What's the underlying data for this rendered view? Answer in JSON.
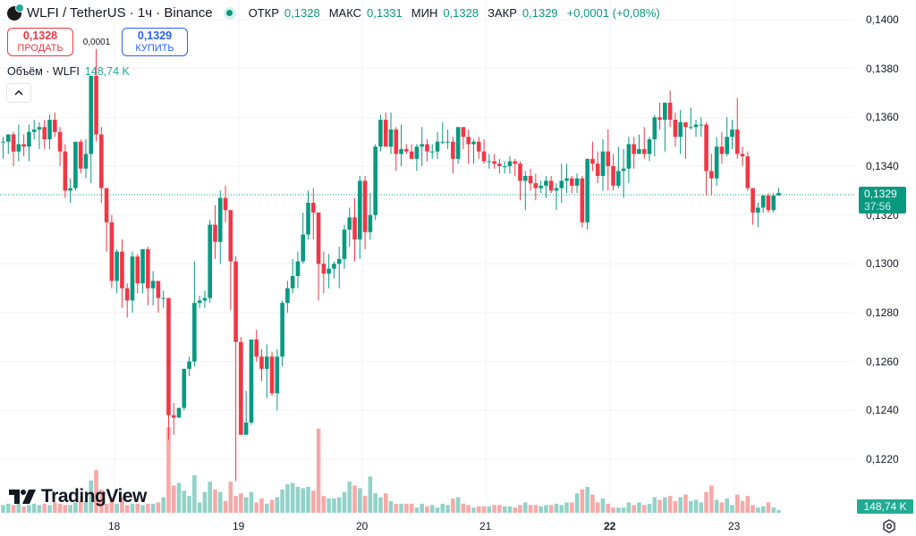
{
  "header": {
    "symbol": "WLFI / TetherUS · 1ч · Binance",
    "ohlc": [
      {
        "label": "ОТКР",
        "value": "0,1328"
      },
      {
        "label": "МАКС",
        "value": "0,1331"
      },
      {
        "label": "МИН",
        "value": "0,1328"
      },
      {
        "label": "ЗАКР",
        "value": "0,1329"
      }
    ],
    "change": "+0,0001 (+0,08%)"
  },
  "trade": {
    "sell_price": "0,1328",
    "sell_label": "ПРОДАТЬ",
    "spread": "0,0001",
    "buy_price": "0,1329",
    "buy_label": "КУПИТЬ"
  },
  "volume_legend": {
    "label": "Объём · WLFI",
    "value": "148,74 K"
  },
  "price_axis": {
    "ticks": [
      "0,1400",
      "0,1380",
      "0,1360",
      "0,1340",
      "0,1320",
      "0,1300",
      "0,1280",
      "0,1260",
      "0,1240",
      "0,1220"
    ],
    "current_price": "0,1329",
    "countdown": "37:56",
    "volume_tag": "148,74 K"
  },
  "time_axis": {
    "ticks": [
      "18",
      "19",
      "20",
      "21",
      "22",
      "23"
    ],
    "bold_tick": "22"
  },
  "branding": "TradingView",
  "colors": {
    "up": "#089981",
    "down": "#f23645",
    "vol_up": "#92d2c8",
    "vol_down": "#f7a9a7",
    "grid": "#f0f3fa"
  },
  "chart_data": {
    "type": "candlestick",
    "title": "WLFI / TetherUS · 1ч · Binance",
    "xlabel": "",
    "ylabel": "",
    "ylim": [
      0.1207,
      0.1405
    ],
    "x_ticks": [
      "18",
      "19",
      "20",
      "21",
      "22",
      "23"
    ],
    "y_ticks": [
      0.14,
      0.138,
      0.136,
      0.134,
      0.132,
      0.13,
      0.128,
      0.126,
      0.124,
      0.122
    ],
    "last": {
      "open": 0.1328,
      "high": 0.1331,
      "low": 0.1328,
      "close": 0.1329,
      "volume": "148,74 K"
    },
    "candles": [
      [
        0.135,
        0.1352,
        0.1343,
        0.135,
        6
      ],
      [
        0.135,
        0.1353,
        0.1345,
        0.1353,
        7
      ],
      [
        0.1353,
        0.1354,
        0.134,
        0.1346,
        6
      ],
      [
        0.1346,
        0.1357,
        0.1342,
        0.1349,
        7
      ],
      [
        0.1349,
        0.1353,
        0.1344,
        0.1348,
        5
      ],
      [
        0.1348,
        0.1357,
        0.1342,
        0.1354,
        6
      ],
      [
        0.1354,
        0.1359,
        0.1351,
        0.1355,
        7
      ],
      [
        0.1355,
        0.1358,
        0.1347,
        0.1356,
        6
      ],
      [
        0.1356,
        0.1359,
        0.1347,
        0.1351,
        7
      ],
      [
        0.1351,
        0.1361,
        0.1347,
        0.1359,
        6
      ],
      [
        0.1359,
        0.1362,
        0.1352,
        0.1354,
        8
      ],
      [
        0.1354,
        0.1356,
        0.134,
        0.1346,
        7
      ],
      [
        0.1346,
        0.1349,
        0.1327,
        0.133,
        6
      ],
      [
        0.133,
        0.1335,
        0.1325,
        0.1331,
        6
      ],
      [
        0.1331,
        0.135,
        0.133,
        0.135,
        8
      ],
      [
        0.135,
        0.1351,
        0.1337,
        0.1339,
        9
      ],
      [
        0.1339,
        0.1351,
        0.1335,
        0.1345,
        9
      ],
      [
        0.1345,
        0.136,
        0.1333,
        0.1377,
        25
      ],
      [
        0.1377,
        0.1388,
        0.135,
        0.1353,
        33
      ],
      [
        0.1353,
        0.1356,
        0.1325,
        0.1331,
        18
      ],
      [
        0.1331,
        0.133,
        0.1305,
        0.1317,
        7
      ],
      [
        0.1317,
        0.132,
        0.129,
        0.1293,
        12
      ],
      [
        0.1293,
        0.1306,
        0.1288,
        0.1305,
        7
      ],
      [
        0.1305,
        0.131,
        0.1282,
        0.129,
        12
      ],
      [
        0.129,
        0.1292,
        0.1278,
        0.1285,
        6
      ],
      [
        0.1285,
        0.1305,
        0.128,
        0.1303,
        7
      ],
      [
        0.1303,
        0.1304,
        0.1288,
        0.1292,
        7
      ],
      [
        0.1292,
        0.1306,
        0.1288,
        0.1306,
        6
      ],
      [
        0.1306,
        0.1307,
        0.1283,
        0.129,
        7
      ],
      [
        0.129,
        0.1297,
        0.1283,
        0.1293,
        7
      ],
      [
        0.1293,
        0.1293,
        0.128,
        0.1286,
        8
      ],
      [
        0.1286,
        0.1289,
        0.1282,
        0.1286,
        12
      ],
      [
        0.1286,
        0.1286,
        0.1228,
        0.1238,
        66
      ],
      [
        0.1238,
        0.1243,
        0.123,
        0.1237,
        21
      ],
      [
        0.1237,
        0.1241,
        0.1237,
        0.1241,
        23
      ],
      [
        0.1241,
        0.1256,
        0.124,
        0.1257,
        17
      ],
      [
        0.1257,
        0.1262,
        0.1254,
        0.126,
        13
      ],
      [
        0.126,
        0.1301,
        0.1258,
        0.1284,
        29
      ],
      [
        0.1284,
        0.1287,
        0.1282,
        0.1285,
        8
      ],
      [
        0.1285,
        0.1289,
        0.1282,
        0.1286,
        16
      ],
      [
        0.1286,
        0.1318,
        0.1284,
        0.1316,
        24
      ],
      [
        0.1316,
        0.1324,
        0.1302,
        0.1309,
        18
      ],
      [
        0.1309,
        0.133,
        0.13,
        0.1327,
        16
      ],
      [
        0.1327,
        0.1332,
        0.1317,
        0.1322,
        9
      ],
      [
        0.1322,
        0.1318,
        0.1281,
        0.1301,
        24
      ],
      [
        0.1301,
        0.1303,
        0.1211,
        0.1268,
        13
      ],
      [
        0.1268,
        0.127,
        0.123,
        0.123,
        15
      ],
      [
        0.123,
        0.1248,
        0.123,
        0.1235,
        12
      ],
      [
        0.1235,
        0.1269,
        0.1234,
        0.1269,
        16
      ],
      [
        0.1269,
        0.1273,
        0.126,
        0.1262,
        8
      ],
      [
        0.1262,
        0.1265,
        0.1252,
        0.1257,
        11
      ],
      [
        0.1257,
        0.1267,
        0.1245,
        0.1262,
        7
      ],
      [
        0.1262,
        0.1264,
        0.1246,
        0.1247,
        10
      ],
      [
        0.1247,
        0.1265,
        0.124,
        0.1262,
        12
      ],
      [
        0.1262,
        0.1285,
        0.1258,
        0.1284,
        18
      ],
      [
        0.1284,
        0.1293,
        0.128,
        0.129,
        22
      ],
      [
        0.129,
        0.1302,
        0.1288,
        0.1295,
        23
      ],
      [
        0.1295,
        0.1305,
        0.129,
        0.1301,
        20
      ],
      [
        0.1301,
        0.1321,
        0.13,
        0.1312,
        19
      ],
      [
        0.1312,
        0.133,
        0.131,
        0.1325,
        20
      ],
      [
        0.1325,
        0.1331,
        0.131,
        0.1321,
        17
      ],
      [
        0.1321,
        0.1318,
        0.1285,
        0.13,
        65
      ],
      [
        0.13,
        0.1305,
        0.1288,
        0.1296,
        13
      ],
      [
        0.1296,
        0.1304,
        0.129,
        0.1298,
        11
      ],
      [
        0.1298,
        0.1301,
        0.1294,
        0.13,
        11
      ],
      [
        0.13,
        0.1307,
        0.129,
        0.1302,
        12
      ],
      [
        0.1302,
        0.1316,
        0.1298,
        0.1314,
        16
      ],
      [
        0.1314,
        0.1323,
        0.1307,
        0.1319,
        24
      ],
      [
        0.1319,
        0.1327,
        0.1301,
        0.131,
        21
      ],
      [
        0.131,
        0.1336,
        0.1302,
        0.1334,
        19
      ],
      [
        0.1334,
        0.1336,
        0.1306,
        0.1313,
        13
      ],
      [
        0.1313,
        0.1329,
        0.131,
        0.132,
        28
      ],
      [
        0.132,
        0.1349,
        0.1318,
        0.1348,
        15
      ],
      [
        0.1348,
        0.1361,
        0.1346,
        0.1359,
        12
      ],
      [
        0.1359,
        0.1362,
        0.1348,
        0.1348,
        15
      ],
      [
        0.1348,
        0.1362,
        0.1345,
        0.1355,
        9
      ],
      [
        0.1355,
        0.1356,
        0.1338,
        0.1345,
        7
      ],
      [
        0.1345,
        0.1357,
        0.134,
        0.1347,
        7
      ],
      [
        0.1347,
        0.1349,
        0.1345,
        0.1346,
        7
      ],
      [
        0.1346,
        0.1349,
        0.1343,
        0.1343,
        7
      ],
      [
        0.1343,
        0.1349,
        0.1338,
        0.1348,
        4
      ],
      [
        0.1348,
        0.1356,
        0.134,
        0.1349,
        7
      ],
      [
        0.1349,
        0.1351,
        0.1342,
        0.1346,
        5
      ],
      [
        0.1346,
        0.1349,
        0.1343,
        0.1346,
        6
      ],
      [
        0.1346,
        0.1354,
        0.1343,
        0.135,
        4
      ],
      [
        0.135,
        0.1358,
        0.1349,
        0.135,
        7
      ],
      [
        0.135,
        0.1355,
        0.1347,
        0.135,
        6
      ],
      [
        0.135,
        0.1352,
        0.1337,
        0.1343,
        11
      ],
      [
        0.1343,
        0.1354,
        0.1341,
        0.1356,
        12
      ],
      [
        0.1356,
        0.1356,
        0.1347,
        0.1352,
        7
      ],
      [
        0.1352,
        0.1355,
        0.1341,
        0.1349,
        6
      ],
      [
        0.1349,
        0.1351,
        0.1341,
        0.135,
        4
      ],
      [
        0.135,
        0.1352,
        0.1343,
        0.1346,
        5
      ],
      [
        0.1346,
        0.1351,
        0.1341,
        0.1342,
        5
      ],
      [
        0.1342,
        0.1345,
        0.1339,
        0.1342,
        5
      ],
      [
        0.1342,
        0.1345,
        0.1339,
        0.1341,
        6
      ],
      [
        0.1341,
        0.1343,
        0.1337,
        0.134,
        6
      ],
      [
        0.134,
        0.1342,
        0.1337,
        0.134,
        5
      ],
      [
        0.134,
        0.1344,
        0.1337,
        0.1342,
        5
      ],
      [
        0.1342,
        0.1343,
        0.1336,
        0.1341,
        4
      ],
      [
        0.1341,
        0.1342,
        0.1326,
        0.1334,
        6
      ],
      [
        0.1334,
        0.1338,
        0.1322,
        0.1336,
        8
      ],
      [
        0.1336,
        0.1339,
        0.133,
        0.1333,
        6
      ],
      [
        0.1333,
        0.1337,
        0.1326,
        0.1331,
        6
      ],
      [
        0.1331,
        0.1334,
        0.1329,
        0.1332,
        5
      ],
      [
        0.1332,
        0.1336,
        0.1327,
        0.1334,
        6
      ],
      [
        0.1334,
        0.1336,
        0.1329,
        0.133,
        6
      ],
      [
        0.133,
        0.1333,
        0.1322,
        0.1331,
        7
      ],
      [
        0.1331,
        0.1341,
        0.1325,
        0.1334,
        6
      ],
      [
        0.1334,
        0.1341,
        0.1329,
        0.1335,
        8
      ],
      [
        0.1335,
        0.1336,
        0.1329,
        0.1332,
        8
      ],
      [
        0.1332,
        0.1337,
        0.1329,
        0.1335,
        15
      ],
      [
        0.1335,
        0.1336,
        0.1315,
        0.1317,
        18
      ],
      [
        0.1317,
        0.1343,
        0.1314,
        0.1343,
        20
      ],
      [
        0.1343,
        0.135,
        0.1338,
        0.1341,
        14
      ],
      [
        0.1341,
        0.1346,
        0.1333,
        0.1336,
        8
      ],
      [
        0.1336,
        0.1351,
        0.133,
        0.1346,
        11
      ],
      [
        0.1346,
        0.1355,
        0.133,
        0.134,
        7
      ],
      [
        0.134,
        0.1345,
        0.133,
        0.1332,
        4
      ],
      [
        0.1332,
        0.1348,
        0.1331,
        0.1338,
        4
      ],
      [
        0.1338,
        0.1347,
        0.1327,
        0.1339,
        4
      ],
      [
        0.1339,
        0.1352,
        0.1333,
        0.1349,
        8
      ],
      [
        0.1349,
        0.1352,
        0.1339,
        0.1345,
        6
      ],
      [
        0.1345,
        0.1353,
        0.1345,
        0.1347,
        8
      ],
      [
        0.1347,
        0.1356,
        0.1343,
        0.1345,
        6
      ],
      [
        0.1345,
        0.1352,
        0.1342,
        0.1351,
        7
      ],
      [
        0.1351,
        0.1361,
        0.1344,
        0.136,
        12
      ],
      [
        0.136,
        0.1366,
        0.1355,
        0.1359,
        10
      ],
      [
        0.1359,
        0.1366,
        0.1346,
        0.1366,
        12
      ],
      [
        0.1366,
        0.1371,
        0.1356,
        0.1359,
        13
      ],
      [
        0.1359,
        0.1362,
        0.1348,
        0.1352,
        9
      ],
      [
        0.1352,
        0.1363,
        0.1345,
        0.1358,
        12
      ],
      [
        0.1358,
        0.1358,
        0.1343,
        0.1356,
        14
      ],
      [
        0.1356,
        0.1364,
        0.1355,
        0.1356,
        9
      ],
      [
        0.1356,
        0.1359,
        0.1352,
        0.1357,
        10
      ],
      [
        0.1357,
        0.136,
        0.1352,
        0.1357,
        8
      ],
      [
        0.1357,
        0.1358,
        0.1328,
        0.1338,
        16
      ],
      [
        0.1338,
        0.1345,
        0.1328,
        0.1335,
        21
      ],
      [
        0.1335,
        0.1352,
        0.1332,
        0.1348,
        10
      ],
      [
        0.1348,
        0.1354,
        0.1341,
        0.1345,
        8
      ],
      [
        0.1345,
        0.136,
        0.1344,
        0.1352,
        11
      ],
      [
        0.1352,
        0.1359,
        0.1347,
        0.1355,
        6
      ],
      [
        0.1355,
        0.1368,
        0.1343,
        0.1345,
        14
      ],
      [
        0.1345,
        0.1348,
        0.134,
        0.1344,
        9
      ],
      [
        0.1344,
        0.1346,
        0.133,
        0.1331,
        13
      ],
      [
        0.1331,
        0.133,
        0.1316,
        0.1321,
        6
      ],
      [
        0.1321,
        0.1325,
        0.1315,
        0.1323,
        4
      ],
      [
        0.1323,
        0.1328,
        0.1321,
        0.1328,
        5
      ],
      [
        0.1328,
        0.1329,
        0.1321,
        0.1322,
        8
      ],
      [
        0.1322,
        0.1329,
        0.1321,
        0.1328,
        4
      ],
      [
        0.1328,
        0.1331,
        0.1328,
        0.1329,
        2
      ]
    ]
  }
}
